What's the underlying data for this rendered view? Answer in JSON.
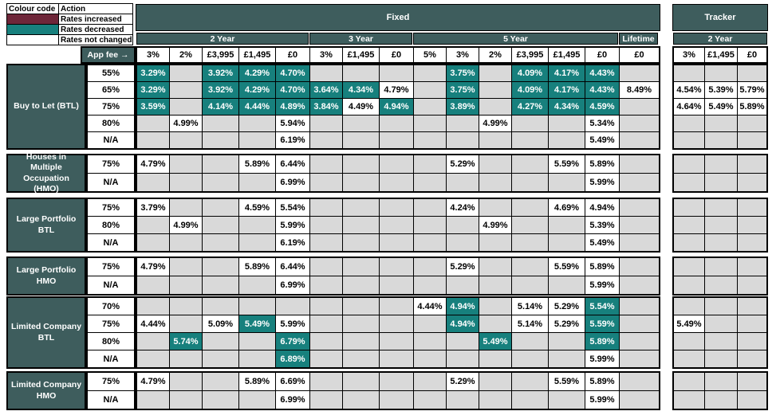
{
  "colors": {
    "header_bg": "#3e5d5d",
    "decreased": "#17807d",
    "increased": "#6e2639",
    "unchanged": "#ffffff",
    "empty_cell": "#d9d9d9"
  },
  "legend": {
    "headers": [
      "Colour code",
      "Action"
    ],
    "rows": [
      {
        "label": "Rates increased",
        "color": "#6e2639"
      },
      {
        "label": "Rates decreased",
        "color": "#17807d"
      },
      {
        "label": "Rates not changed",
        "color": "#ffffff"
      }
    ]
  },
  "header": {
    "fixed_label": "Fixed",
    "tracker_label": "Tracker",
    "app_fee_label": "App fee →",
    "fixed_groups": [
      {
        "label": "2 Year",
        "columns": [
          "3%",
          "2%",
          "£3,995",
          "£1,495",
          "£0"
        ]
      },
      {
        "label": "3 Year",
        "columns": [
          "3%",
          "£1,495",
          "£0"
        ]
      },
      {
        "label": "5 Year",
        "columns": [
          "5%",
          "3%",
          "2%",
          "£3,995",
          "£1,495",
          "£0"
        ]
      },
      {
        "label": "Lifetime",
        "columns": [
          "£0"
        ]
      }
    ],
    "tracker_group": {
      "label": "2 Year",
      "columns": [
        "3%",
        "£1,495",
        "£0"
      ]
    }
  },
  "sections": [
    {
      "label": "Buy to Let (BTL)",
      "rows": [
        {
          "ltv": "55%",
          "cells": [
            [
              "3.29%",
              "decreased"
            ],
            null,
            [
              "3.92%",
              "decreased"
            ],
            [
              "4.29%",
              "decreased"
            ],
            [
              "4.70%",
              "decreased"
            ],
            null,
            null,
            null,
            null,
            [
              "3.75%",
              "decreased"
            ],
            null,
            [
              "4.09%",
              "decreased"
            ],
            [
              "4.17%",
              "decreased"
            ],
            [
              "4.43%",
              "decreased"
            ],
            null,
            null,
            null,
            null
          ]
        },
        {
          "ltv": "65%",
          "cells": [
            [
              "3.29%",
              "decreased"
            ],
            null,
            [
              "3.92%",
              "decreased"
            ],
            [
              "4.29%",
              "decreased"
            ],
            [
              "4.70%",
              "decreased"
            ],
            [
              "3.64%",
              "decreased"
            ],
            [
              "4.34%",
              "decreased"
            ],
            [
              "4.79%",
              "unchanged"
            ],
            null,
            [
              "3.75%",
              "decreased"
            ],
            null,
            [
              "4.09%",
              "decreased"
            ],
            [
              "4.17%",
              "decreased"
            ],
            [
              "4.43%",
              "decreased"
            ],
            [
              "8.49%",
              "unchanged"
            ],
            [
              "4.54%",
              "unchanged"
            ],
            [
              "5.39%",
              "unchanged"
            ],
            [
              "5.79%",
              "unchanged"
            ]
          ]
        },
        {
          "ltv": "75%",
          "cells": [
            [
              "3.59%",
              "decreased"
            ],
            null,
            [
              "4.14%",
              "decreased"
            ],
            [
              "4.44%",
              "decreased"
            ],
            [
              "4.89%",
              "decreased"
            ],
            [
              "3.84%",
              "decreased"
            ],
            [
              "4.49%",
              "unchanged"
            ],
            [
              "4.94%",
              "decreased"
            ],
            null,
            [
              "3.89%",
              "decreased"
            ],
            null,
            [
              "4.27%",
              "decreased"
            ],
            [
              "4.34%",
              "decreased"
            ],
            [
              "4.59%",
              "decreased"
            ],
            null,
            [
              "4.64%",
              "unchanged"
            ],
            [
              "5.49%",
              "unchanged"
            ],
            [
              "5.89%",
              "unchanged"
            ]
          ]
        },
        {
          "ltv": "80%",
          "cells": [
            null,
            [
              "4.99%",
              "unchanged"
            ],
            null,
            null,
            [
              "5.94%",
              "unchanged"
            ],
            null,
            null,
            null,
            null,
            null,
            [
              "4.99%",
              "unchanged"
            ],
            null,
            null,
            [
              "5.34%",
              "unchanged"
            ],
            null,
            null,
            null,
            null
          ]
        },
        {
          "ltv": "N/A",
          "cells": [
            null,
            null,
            null,
            null,
            [
              "6.19%",
              "unchanged"
            ],
            null,
            null,
            null,
            null,
            null,
            null,
            null,
            null,
            [
              "5.49%",
              "unchanged"
            ],
            null,
            null,
            null,
            null
          ]
        }
      ]
    },
    {
      "label": "Houses in Multiple Occupation (HMO)",
      "rows": [
        {
          "ltv": "75%",
          "cells": [
            [
              "4.79%",
              "unchanged"
            ],
            null,
            null,
            [
              "5.89%",
              "unchanged"
            ],
            [
              "6.44%",
              "unchanged"
            ],
            null,
            null,
            null,
            null,
            [
              "5.29%",
              "unchanged"
            ],
            null,
            null,
            [
              "5.59%",
              "unchanged"
            ],
            [
              "5.89%",
              "unchanged"
            ],
            null,
            null,
            null,
            null
          ]
        },
        {
          "ltv": "N/A",
          "cells": [
            null,
            null,
            null,
            null,
            [
              "6.99%",
              "unchanged"
            ],
            null,
            null,
            null,
            null,
            null,
            null,
            null,
            null,
            [
              "5.99%",
              "unchanged"
            ],
            null,
            null,
            null,
            null
          ]
        }
      ]
    },
    {
      "label": "Large Portfolio BTL",
      "rows": [
        {
          "ltv": "75%",
          "cells": [
            [
              "3.79%",
              "unchanged"
            ],
            null,
            null,
            [
              "4.59%",
              "unchanged"
            ],
            [
              "5.54%",
              "unchanged"
            ],
            null,
            null,
            null,
            null,
            [
              "4.24%",
              "unchanged"
            ],
            null,
            null,
            [
              "4.69%",
              "unchanged"
            ],
            [
              "4.94%",
              "unchanged"
            ],
            null,
            null,
            null,
            null
          ]
        },
        {
          "ltv": "80%",
          "cells": [
            null,
            [
              "4.99%",
              "unchanged"
            ],
            null,
            null,
            [
              "5.99%",
              "unchanged"
            ],
            null,
            null,
            null,
            null,
            null,
            [
              "4.99%",
              "unchanged"
            ],
            null,
            null,
            [
              "5.39%",
              "unchanged"
            ],
            null,
            null,
            null,
            null
          ]
        },
        {
          "ltv": "N/A",
          "cells": [
            null,
            null,
            null,
            null,
            [
              "6.19%",
              "unchanged"
            ],
            null,
            null,
            null,
            null,
            null,
            null,
            null,
            null,
            [
              "5.49%",
              "unchanged"
            ],
            null,
            null,
            null,
            null
          ]
        }
      ]
    },
    {
      "label": "Large Portfolio HMO",
      "rows": [
        {
          "ltv": "75%",
          "cells": [
            [
              "4.79%",
              "unchanged"
            ],
            null,
            null,
            [
              "5.89%",
              "unchanged"
            ],
            [
              "6.44%",
              "unchanged"
            ],
            null,
            null,
            null,
            null,
            [
              "5.29%",
              "unchanged"
            ],
            null,
            null,
            [
              "5.59%",
              "unchanged"
            ],
            [
              "5.89%",
              "unchanged"
            ],
            null,
            null,
            null,
            null
          ]
        },
        {
          "ltv": "N/A",
          "cells": [
            null,
            null,
            null,
            null,
            [
              "6.99%",
              "unchanged"
            ],
            null,
            null,
            null,
            null,
            null,
            null,
            null,
            null,
            [
              "5.99%",
              "unchanged"
            ],
            null,
            null,
            null,
            null
          ]
        }
      ]
    },
    {
      "label": "Limited Company BTL",
      "rows": [
        {
          "ltv": "70%",
          "cells": [
            null,
            null,
            null,
            null,
            null,
            null,
            null,
            null,
            [
              "4.44%",
              "unchanged"
            ],
            [
              "4.94%",
              "decreased"
            ],
            null,
            [
              "5.14%",
              "unchanged"
            ],
            [
              "5.29%",
              "unchanged"
            ],
            [
              "5.54%",
              "decreased"
            ],
            null,
            null,
            null,
            null
          ]
        },
        {
          "ltv": "75%",
          "cells": [
            [
              "4.44%",
              "unchanged"
            ],
            null,
            [
              "5.09%",
              "unchanged"
            ],
            [
              "5.49%",
              "decreased"
            ],
            [
              "5.99%",
              "unchanged"
            ],
            null,
            null,
            null,
            null,
            [
              "4.94%",
              "decreased"
            ],
            null,
            [
              "5.14%",
              "unchanged"
            ],
            [
              "5.29%",
              "unchanged"
            ],
            [
              "5.59%",
              "decreased"
            ],
            null,
            [
              "5.49%",
              "unchanged"
            ],
            null,
            null
          ]
        },
        {
          "ltv": "80%",
          "cells": [
            null,
            [
              "5.74%",
              "decreased"
            ],
            null,
            null,
            [
              "6.79%",
              "decreased"
            ],
            null,
            null,
            null,
            null,
            null,
            [
              "5.49%",
              "decreased"
            ],
            null,
            null,
            [
              "5.89%",
              "decreased"
            ],
            null,
            null,
            null,
            null
          ]
        },
        {
          "ltv": "N/A",
          "cells": [
            null,
            null,
            null,
            null,
            [
              "6.89%",
              "decreased"
            ],
            null,
            null,
            null,
            null,
            null,
            null,
            null,
            null,
            [
              "5.99%",
              "unchanged"
            ],
            null,
            null,
            null,
            null
          ]
        }
      ]
    },
    {
      "label": "Limited Company HMO",
      "rows": [
        {
          "ltv": "75%",
          "cells": [
            [
              "4.79%",
              "unchanged"
            ],
            null,
            null,
            [
              "5.89%",
              "unchanged"
            ],
            [
              "6.69%",
              "unchanged"
            ],
            null,
            null,
            null,
            null,
            [
              "5.29%",
              "unchanged"
            ],
            null,
            null,
            [
              "5.59%",
              "unchanged"
            ],
            [
              "5.89%",
              "unchanged"
            ],
            null,
            null,
            null,
            null
          ]
        },
        {
          "ltv": "N/A",
          "cells": [
            null,
            null,
            null,
            null,
            [
              "6.99%",
              "unchanged"
            ],
            null,
            null,
            null,
            null,
            null,
            null,
            null,
            null,
            [
              "5.99%",
              "unchanged"
            ],
            null,
            null,
            null,
            null
          ]
        }
      ]
    }
  ]
}
